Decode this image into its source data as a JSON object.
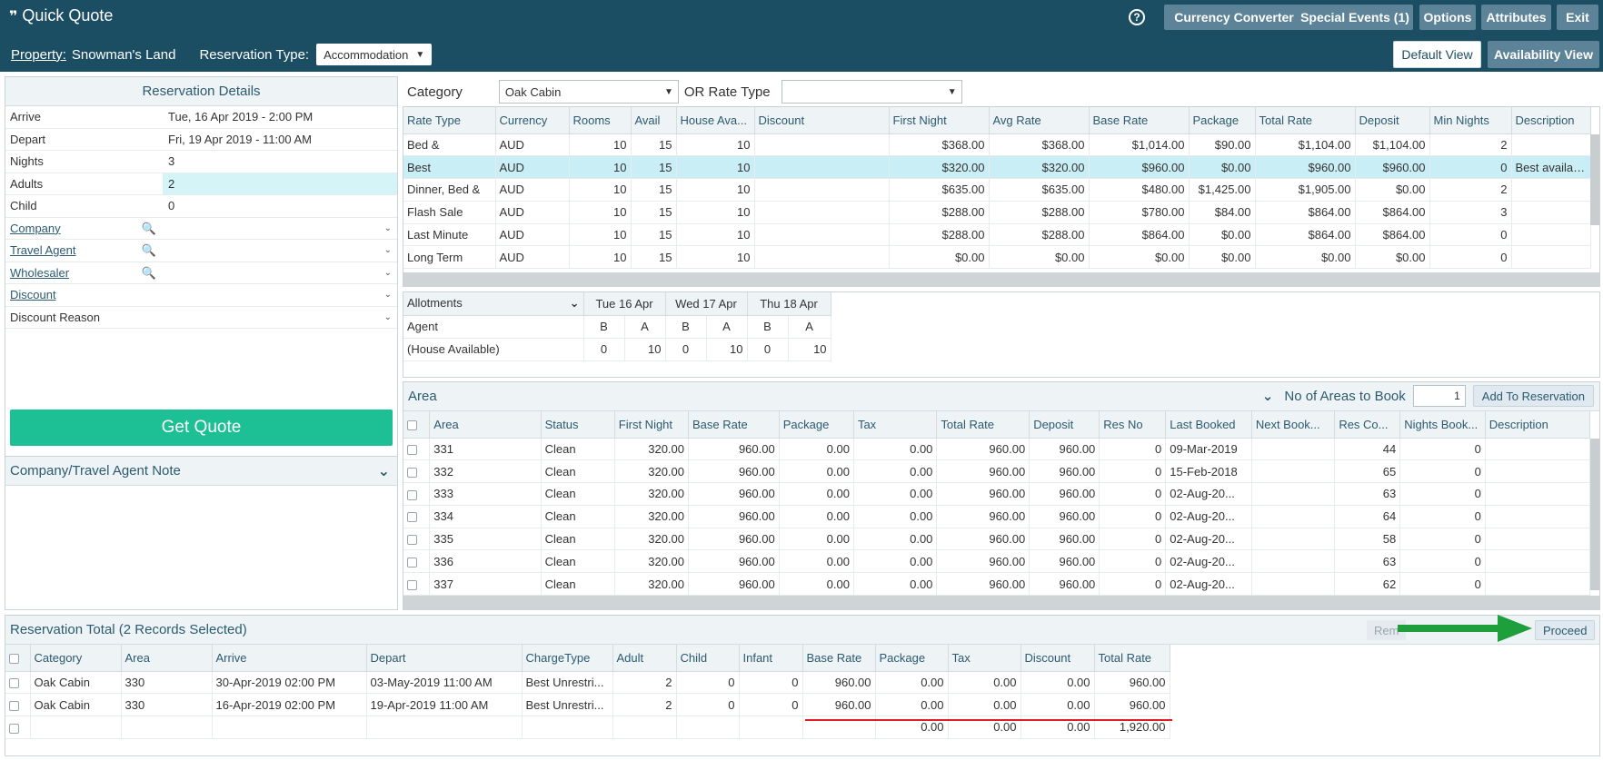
{
  "header": {
    "title": "Quick Quote",
    "help": "?",
    "buttons": [
      "Currency Converter",
      "Special Events (1)",
      "Options",
      "Attributes",
      "Exit"
    ],
    "property_label": "Property:",
    "property_value": "Snowman's Land",
    "res_type_label": "Reservation Type:",
    "res_type_value": "Accommodation",
    "default_view": "Default View",
    "availability_view": "Availability View"
  },
  "details": {
    "title": "Reservation Details",
    "rows": [
      {
        "label": "Arrive",
        "value": "Tue, 16 Apr 2019 - 2:00 PM"
      },
      {
        "label": "Depart",
        "value": "Fri, 19 Apr 2019 - 11:00 AM"
      },
      {
        "label": "Nights",
        "value": "3"
      },
      {
        "label": "Adults",
        "value": "2"
      },
      {
        "label": "Child",
        "value": "0"
      },
      {
        "label": "Company",
        "value": ""
      },
      {
        "label": "Travel Agent",
        "value": ""
      },
      {
        "label": "Wholesaler",
        "value": ""
      },
      {
        "label": "Discount",
        "value": ""
      },
      {
        "label": "Discount Reason",
        "value": ""
      }
    ],
    "get_quote": "Get Quote"
  },
  "note": {
    "title": "Company/Travel Agent Note"
  },
  "category": {
    "label": "Category",
    "value": "Oak Cabin",
    "rate_type_label": "OR Rate Type",
    "rate_type_value": ""
  },
  "rates": {
    "headers": [
      "Rate Type",
      "Currency",
      "Rooms",
      "Avail",
      "House Ava...",
      "Discount",
      "First Night",
      "Avg Rate",
      "Base Rate",
      "Package",
      "Total Rate",
      "Deposit",
      "Min Nights",
      "Description"
    ],
    "rows": [
      [
        "Bed &",
        "AUD",
        "10",
        "15",
        "10",
        "",
        "$368.00",
        "$368.00",
        "$1,014.00",
        "$90.00",
        "$1,104.00",
        "$1,104.00",
        "2",
        ""
      ],
      [
        "Best",
        "AUD",
        "10",
        "15",
        "10",
        "",
        "$320.00",
        "$320.00",
        "$960.00",
        "$0.00",
        "$960.00",
        "$960.00",
        "0",
        "Best availabl..."
      ],
      [
        "Dinner, Bed &",
        "AUD",
        "10",
        "15",
        "10",
        "",
        "$635.00",
        "$635.00",
        "$480.00",
        "$1,425.00",
        "$1,905.00",
        "$0.00",
        "2",
        ""
      ],
      [
        "Flash Sale",
        "AUD",
        "10",
        "15",
        "10",
        "",
        "$288.00",
        "$288.00",
        "$780.00",
        "$84.00",
        "$864.00",
        "$864.00",
        "3",
        ""
      ],
      [
        "Last Minute",
        "AUD",
        "10",
        "15",
        "10",
        "",
        "$288.00",
        "$288.00",
        "$864.00",
        "$0.00",
        "$864.00",
        "$864.00",
        "0",
        ""
      ],
      [
        "Long Term",
        "AUD",
        "10",
        "15",
        "10",
        "",
        "$0.00",
        "$0.00",
        "$0.00",
        "$0.00",
        "$0.00",
        "$0.00",
        "0",
        ""
      ]
    ],
    "selected_row": 1
  },
  "allotments": {
    "header": "Allotments",
    "days": [
      "Tue 16 Apr",
      "Wed 17 Apr",
      "Thu 18 Apr"
    ],
    "rows": [
      {
        "label": "Agent",
        "values": [
          "B",
          "A",
          "B",
          "A",
          "B",
          "A"
        ]
      },
      {
        "label": "(House Available)",
        "values": [
          "0",
          "10",
          "0",
          "10",
          "0",
          "10"
        ]
      }
    ]
  },
  "areas": {
    "title": "Area",
    "no_of_areas_label": "No of Areas to Book",
    "no_of_areas_value": "1",
    "add_button": "Add To Reservation",
    "headers": [
      "",
      "Area",
      "Status",
      "First Night",
      "Base Rate",
      "Package",
      "Tax",
      "Total Rate",
      "Deposit",
      "Res No",
      "Last Booked",
      "Next Book...",
      "Res Co...",
      "Nights Book...",
      "Description"
    ],
    "rows": [
      [
        "",
        "331",
        "Clean",
        "320.00",
        "960.00",
        "0.00",
        "0.00",
        "960.00",
        "960.00",
        "0",
        "09-Mar-2019",
        "",
        "44",
        "0",
        ""
      ],
      [
        "",
        "332",
        "Clean",
        "320.00",
        "960.00",
        "0.00",
        "0.00",
        "960.00",
        "960.00",
        "0",
        "15-Feb-2018",
        "",
        "65",
        "0",
        ""
      ],
      [
        "",
        "333",
        "Clean",
        "320.00",
        "960.00",
        "0.00",
        "0.00",
        "960.00",
        "960.00",
        "0",
        "02-Aug-20...",
        "",
        "63",
        "0",
        ""
      ],
      [
        "",
        "334",
        "Clean",
        "320.00",
        "960.00",
        "0.00",
        "0.00",
        "960.00",
        "960.00",
        "0",
        "02-Aug-20...",
        "",
        "64",
        "0",
        ""
      ],
      [
        "",
        "335",
        "Clean",
        "320.00",
        "960.00",
        "0.00",
        "0.00",
        "960.00",
        "960.00",
        "0",
        "02-Aug-20...",
        "",
        "58",
        "0",
        ""
      ],
      [
        "",
        "336",
        "Clean",
        "320.00",
        "960.00",
        "0.00",
        "0.00",
        "960.00",
        "960.00",
        "0",
        "02-Aug-20...",
        "",
        "63",
        "0",
        ""
      ],
      [
        "",
        "337",
        "Clean",
        "320.00",
        "960.00",
        "0.00",
        "0.00",
        "960.00",
        "960.00",
        "0",
        "02-Aug-20...",
        "",
        "62",
        "0",
        ""
      ]
    ]
  },
  "totals": {
    "title": "Reservation Total (2 Records Selected)",
    "remove_button": "Rem",
    "proceed_button": "Proceed",
    "headers": [
      "",
      "Category",
      "Area",
      "Arrive",
      "Depart",
      "ChargeType",
      "Adult",
      "Child",
      "Infant",
      "Base Rate",
      "Package",
      "Tax",
      "Discount",
      "Total Rate"
    ],
    "rows": [
      [
        "",
        "Oak Cabin",
        "330",
        "30-Apr-2019 02:00 PM",
        "03-May-2019 11:00 AM",
        "Best Unrestri...",
        "2",
        "0",
        "0",
        "960.00",
        "0.00",
        "0.00",
        "0.00",
        "960.00"
      ],
      [
        "",
        "Oak Cabin",
        "330",
        "16-Apr-2019 02:00 PM",
        "19-Apr-2019 11:00 AM",
        "Best Unrestri...",
        "2",
        "0",
        "0",
        "960.00",
        "0.00",
        "0.00",
        "0.00",
        "960.00"
      ],
      [
        "",
        "",
        "",
        "",
        "",
        "",
        "",
        "",
        "",
        "",
        "0.00",
        "0.00",
        "0.00",
        "1,920.00"
      ]
    ]
  },
  "colors": {
    "header": "#1c4e63",
    "button": "#5c8397",
    "accent": "#1dbf94",
    "selected": "#c9eef5",
    "highlight_line": "#e02020",
    "arrow": "#1f9e3c"
  },
  "icons": {
    "title": "quote-icon",
    "help": "help-circle-icon",
    "lookup": "search-icon",
    "dropdown": "chevron-down-icon",
    "pointer": "arrow-right-icon"
  }
}
